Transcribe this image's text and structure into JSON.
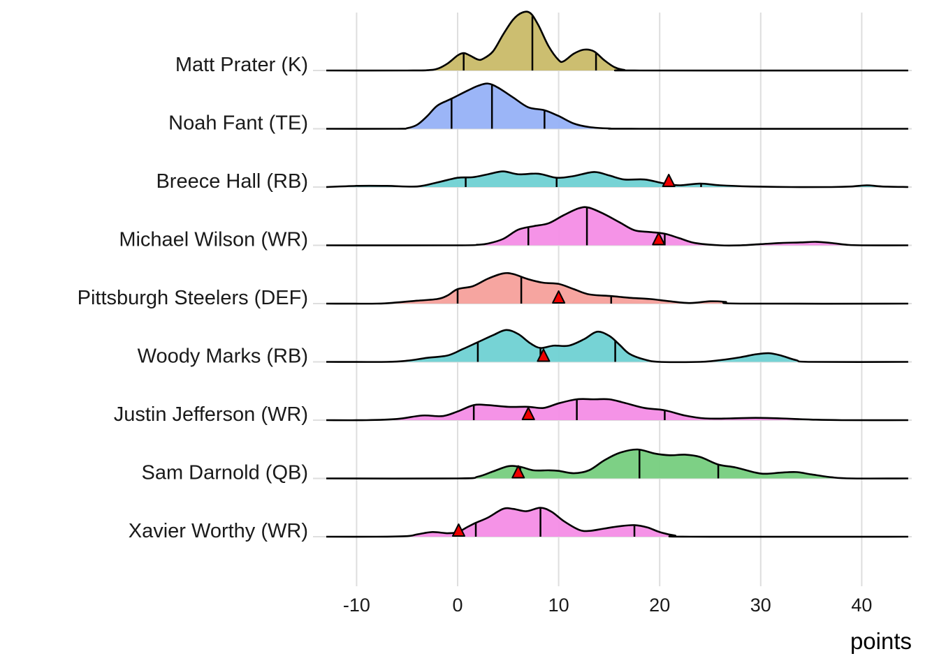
{
  "chart_data": {
    "type": "ridgeline",
    "title": "",
    "xlabel": "points",
    "ylabel": "",
    "xlim": [
      -13,
      44.6
    ],
    "x_ticks": [
      -10,
      0,
      10,
      20,
      30,
      40
    ],
    "grid": true,
    "legend": "none",
    "density_units": "relative density (1.0 = tallest peak in figure)",
    "series": [
      {
        "name": "Matt Prater (K)",
        "color": "#c9bb68",
        "quantiles": [
          0.6,
          7.4,
          13.7
        ],
        "marker": null,
        "density": [
          [
            -13,
            0
          ],
          [
            -5,
            0
          ],
          [
            -3,
            0.005
          ],
          [
            -2,
            0.03
          ],
          [
            -1,
            0.12
          ],
          [
            0,
            0.26
          ],
          [
            0.6,
            0.3
          ],
          [
            1.2,
            0.26
          ],
          [
            2,
            0.19
          ],
          [
            2.5,
            0.2
          ],
          [
            3.5,
            0.33
          ],
          [
            4.5,
            0.62
          ],
          [
            5.5,
            0.88
          ],
          [
            6.4,
            1.0
          ],
          [
            7.2,
            0.99
          ],
          [
            8,
            0.78
          ],
          [
            9,
            0.42
          ],
          [
            10,
            0.18
          ],
          [
            10.5,
            0.16
          ],
          [
            11.5,
            0.29
          ],
          [
            12.5,
            0.36
          ],
          [
            13.5,
            0.33
          ],
          [
            14.5,
            0.18
          ],
          [
            15.5,
            0.06
          ],
          [
            16.5,
            0.01
          ],
          [
            18,
            0
          ],
          [
            44.6,
            0
          ]
        ]
      },
      {
        "name": "Noah Fant (TE)",
        "color": "#96b1f7",
        "quantiles": [
          -0.6,
          3.4,
          8.6
        ],
        "marker": null,
        "density": [
          [
            -13,
            0
          ],
          [
            -6,
            0
          ],
          [
            -5,
            0.01
          ],
          [
            -4,
            0.07
          ],
          [
            -3,
            0.22
          ],
          [
            -2,
            0.4
          ],
          [
            -0.6,
            0.52
          ],
          [
            1,
            0.66
          ],
          [
            2,
            0.74
          ],
          [
            3,
            0.78
          ],
          [
            4,
            0.71
          ],
          [
            5.5,
            0.54
          ],
          [
            7,
            0.37
          ],
          [
            8.6,
            0.32
          ],
          [
            10,
            0.22
          ],
          [
            11.5,
            0.09
          ],
          [
            13,
            0.03
          ],
          [
            15,
            0.005
          ],
          [
            18,
            0
          ],
          [
            44.6,
            0
          ]
        ]
      },
      {
        "name": "Breece Hall (RB)",
        "color": "#6fd1d3",
        "quantiles": [
          0.8,
          9.8,
          24.1
        ],
        "marker": 20.9,
        "density": [
          [
            -13,
            0
          ],
          [
            -10,
            0.02
          ],
          [
            -7,
            0.02
          ],
          [
            -4,
            0.01
          ],
          [
            -2,
            0.08
          ],
          [
            0,
            0.16
          ],
          [
            1.5,
            0.17
          ],
          [
            3,
            0.22
          ],
          [
            4.5,
            0.27
          ],
          [
            6,
            0.22
          ],
          [
            8,
            0.23
          ],
          [
            9.8,
            0.16
          ],
          [
            11.5,
            0.19
          ],
          [
            13.5,
            0.26
          ],
          [
            15,
            0.2
          ],
          [
            16.5,
            0.13
          ],
          [
            18.5,
            0.13
          ],
          [
            20.5,
            0.06
          ],
          [
            22,
            0.03
          ],
          [
            24,
            0.06
          ],
          [
            26,
            0.03
          ],
          [
            29,
            0.01
          ],
          [
            33,
            0
          ],
          [
            37,
            0
          ],
          [
            39,
            0.01
          ],
          [
            40.5,
            0.03
          ],
          [
            42,
            0.01
          ],
          [
            44.6,
            0
          ]
        ]
      },
      {
        "name": "Michael Wilson (WR)",
        "color": "#f48de6",
        "quantiles": [
          7.0,
          12.8,
          20.5
        ],
        "marker": 19.9,
        "density": [
          [
            -13,
            0
          ],
          [
            0,
            0
          ],
          [
            2,
            0.01
          ],
          [
            3,
            0.03
          ],
          [
            4.5,
            0.11
          ],
          [
            6,
            0.27
          ],
          [
            7.5,
            0.33
          ],
          [
            9,
            0.38
          ],
          [
            10.5,
            0.52
          ],
          [
            12,
            0.64
          ],
          [
            13,
            0.65
          ],
          [
            14.5,
            0.54
          ],
          [
            16,
            0.4
          ],
          [
            17.5,
            0.26
          ],
          [
            19,
            0.23
          ],
          [
            20.5,
            0.2
          ],
          [
            22,
            0.12
          ],
          [
            23.5,
            0.04
          ],
          [
            26,
            0
          ],
          [
            28,
            0
          ],
          [
            30,
            0.02
          ],
          [
            32,
            0.04
          ],
          [
            34,
            0.05
          ],
          [
            35.5,
            0.06
          ],
          [
            37,
            0.04
          ],
          [
            38.5,
            0.01
          ],
          [
            40,
            0
          ],
          [
            44.6,
            0
          ]
        ]
      },
      {
        "name": "Pittsburgh Steelers (DEF)",
        "color": "#f5a09b",
        "quantiles": [
          0.0,
          6.3,
          15.2
        ],
        "marker": 10.0,
        "density": [
          [
            -13,
            0
          ],
          [
            -8,
            0
          ],
          [
            -6,
            0.02
          ],
          [
            -4,
            0.05
          ],
          [
            -2,
            0.08
          ],
          [
            -1,
            0.14
          ],
          [
            0,
            0.25
          ],
          [
            1.5,
            0.3
          ],
          [
            3,
            0.43
          ],
          [
            4.5,
            0.52
          ],
          [
            5.5,
            0.51
          ],
          [
            7,
            0.42
          ],
          [
            8.5,
            0.36
          ],
          [
            10,
            0.34
          ],
          [
            11.5,
            0.25
          ],
          [
            13,
            0.16
          ],
          [
            15.2,
            0.13
          ],
          [
            17,
            0.1
          ],
          [
            19,
            0.08
          ],
          [
            21,
            0.04
          ],
          [
            23,
            0.01
          ],
          [
            25,
            0.04
          ],
          [
            26.5,
            0.03
          ],
          [
            28,
            0
          ],
          [
            44.6,
            0
          ]
        ]
      },
      {
        "name": "Woody Marks (RB)",
        "color": "#6fd1d3",
        "quantiles": [
          2.0,
          8.2,
          15.6
        ],
        "marker": 8.5,
        "density": [
          [
            -13,
            0
          ],
          [
            -7,
            0
          ],
          [
            -5,
            0.02
          ],
          [
            -3,
            0.07
          ],
          [
            -1,
            0.11
          ],
          [
            0.5,
            0.22
          ],
          [
            2,
            0.34
          ],
          [
            3.5,
            0.46
          ],
          [
            4.8,
            0.55
          ],
          [
            6,
            0.48
          ],
          [
            7.2,
            0.32
          ],
          [
            8.2,
            0.24
          ],
          [
            9.5,
            0.28
          ],
          [
            11,
            0.28
          ],
          [
            12.5,
            0.39
          ],
          [
            13.8,
            0.52
          ],
          [
            15,
            0.45
          ],
          [
            16,
            0.3
          ],
          [
            17,
            0.14
          ],
          [
            18.5,
            0.04
          ],
          [
            20,
            0
          ],
          [
            24,
            0
          ],
          [
            26,
            0.03
          ],
          [
            28,
            0.08
          ],
          [
            29.5,
            0.13
          ],
          [
            30.8,
            0.15
          ],
          [
            32,
            0.11
          ],
          [
            33.5,
            0.03
          ],
          [
            35,
            0
          ],
          [
            44.6,
            0
          ]
        ]
      },
      {
        "name": "Justin Jefferson (WR)",
        "color": "#f48de6",
        "quantiles": [
          1.6,
          11.8,
          20.5
        ],
        "marker": 7.0,
        "density": [
          [
            -13,
            0
          ],
          [
            -9,
            0
          ],
          [
            -6,
            0.02
          ],
          [
            -3.5,
            0.08
          ],
          [
            -1.5,
            0.07
          ],
          [
            0,
            0.15
          ],
          [
            1.6,
            0.26
          ],
          [
            3,
            0.26
          ],
          [
            5,
            0.23
          ],
          [
            7,
            0.23
          ],
          [
            8.5,
            0.21
          ],
          [
            10,
            0.29
          ],
          [
            11.8,
            0.36
          ],
          [
            13.5,
            0.36
          ],
          [
            15,
            0.36
          ],
          [
            16.5,
            0.3
          ],
          [
            18.5,
            0.21
          ],
          [
            20.5,
            0.17
          ],
          [
            22.5,
            0.08
          ],
          [
            24.5,
            0.03
          ],
          [
            27,
            0.03
          ],
          [
            29.5,
            0.04
          ],
          [
            32,
            0.03
          ],
          [
            35,
            0.01
          ],
          [
            38,
            0
          ],
          [
            44.6,
            0
          ]
        ]
      },
      {
        "name": "Sam Darnold (QB)",
        "color": "#76ce7e",
        "quantiles": [
          6.2,
          18.0,
          25.8
        ],
        "marker": 6.0,
        "density": [
          [
            -13,
            0
          ],
          [
            0,
            0
          ],
          [
            2,
            0.03
          ],
          [
            3.5,
            0.12
          ],
          [
            5,
            0.21
          ],
          [
            6.2,
            0.2
          ],
          [
            7.5,
            0.14
          ],
          [
            9,
            0.14
          ],
          [
            10,
            0.13
          ],
          [
            11.5,
            0.09
          ],
          [
            13,
            0.14
          ],
          [
            14.5,
            0.31
          ],
          [
            16,
            0.44
          ],
          [
            17.8,
            0.5
          ],
          [
            19.5,
            0.43
          ],
          [
            21,
            0.4
          ],
          [
            22.5,
            0.41
          ],
          [
            24,
            0.37
          ],
          [
            25.8,
            0.24
          ],
          [
            27.5,
            0.19
          ],
          [
            29.5,
            0.1
          ],
          [
            30.5,
            0.08
          ],
          [
            32,
            0.1
          ],
          [
            33.5,
            0.11
          ],
          [
            35,
            0.07
          ],
          [
            37,
            0.02
          ],
          [
            39,
            0
          ],
          [
            44.6,
            0
          ]
        ]
      },
      {
        "name": "Xavier Worthy (WR)",
        "color": "#f48de6",
        "quantiles": [
          1.8,
          8.2,
          17.5
        ],
        "marker": 0.1,
        "density": [
          [
            -13,
            0
          ],
          [
            -8,
            0
          ],
          [
            -5,
            0.01
          ],
          [
            -4,
            0.04
          ],
          [
            -2.5,
            0.08
          ],
          [
            -1,
            0.06
          ],
          [
            0,
            0.08
          ],
          [
            1,
            0.17
          ],
          [
            1.8,
            0.24
          ],
          [
            3,
            0.33
          ],
          [
            4.5,
            0.48
          ],
          [
            5.5,
            0.48
          ],
          [
            6.8,
            0.44
          ],
          [
            8.2,
            0.5
          ],
          [
            9.3,
            0.43
          ],
          [
            10.5,
            0.27
          ],
          [
            12,
            0.12
          ],
          [
            13,
            0.1
          ],
          [
            14.5,
            0.14
          ],
          [
            16,
            0.18
          ],
          [
            17.5,
            0.2
          ],
          [
            18.8,
            0.16
          ],
          [
            20,
            0.08
          ],
          [
            21.5,
            0.02
          ],
          [
            23,
            0
          ],
          [
            44.6,
            0
          ]
        ]
      }
    ]
  }
}
